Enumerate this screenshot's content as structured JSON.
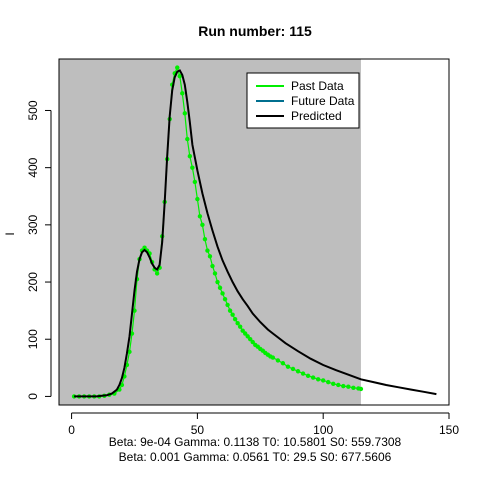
{
  "chart_data": {
    "type": "line",
    "title": "Run number:  115",
    "xlabel": "",
    "ylabel": "I",
    "xlim": [
      -5,
      150
    ],
    "ylim": [
      -15,
      590
    ],
    "xticks": [
      0,
      50,
      100,
      150
    ],
    "yticks": [
      0,
      100,
      200,
      300,
      400,
      500
    ],
    "grid": false,
    "shaded_region_x": [
      -5,
      115
    ],
    "legend": {
      "position": "top-right",
      "entries": [
        {
          "label": "Past Data",
          "color": "#00ee00"
        },
        {
          "label": "Future Data",
          "color": "#006f8f"
        },
        {
          "label": "Predicted",
          "color": "#000000"
        }
      ]
    },
    "footer_lines": [
      "Beta:  9e-04 Gamma:  0.1138 T0:  10.5801 S0:  559.7308",
      "Beta:  0.001 Gamma:  0.0561 T0:  29.5 S0:  677.5606"
    ],
    "series": [
      {
        "name": "Past Data",
        "style": "points+line",
        "color": "#00ee00",
        "x": [
          1,
          3,
          5,
          7,
          9,
          11,
          13,
          15,
          17,
          19,
          20,
          21,
          22,
          23,
          24,
          25,
          26,
          27,
          28,
          29,
          30,
          31,
          32,
          33,
          34,
          35,
          36,
          37,
          38,
          39,
          40,
          41,
          42,
          43,
          44,
          45,
          46,
          47,
          48,
          49,
          50,
          51,
          52,
          53,
          54,
          55,
          56,
          57,
          58,
          59,
          60,
          61,
          62,
          63,
          64,
          65,
          66,
          67,
          68,
          69,
          70,
          71,
          72,
          73,
          74,
          75,
          76,
          77,
          78,
          79,
          80,
          82,
          84,
          86,
          88,
          90,
          92,
          94,
          96,
          98,
          100,
          102,
          104,
          106,
          108,
          110,
          112,
          114,
          115
        ],
        "y": [
          0,
          0,
          0,
          0,
          0,
          0,
          1,
          3,
          5,
          12,
          20,
          35,
          55,
          78,
          110,
          150,
          205,
          240,
          255,
          260,
          255,
          250,
          235,
          222,
          215,
          225,
          280,
          340,
          415,
          485,
          545,
          565,
          575,
          560,
          530,
          495,
          450,
          420,
          400,
          375,
          345,
          315,
          300,
          275,
          255,
          245,
          228,
          215,
          200,
          190,
          180,
          170,
          160,
          150,
          143,
          135,
          128,
          122,
          115,
          110,
          105,
          100,
          95,
          90,
          87,
          83,
          80,
          76,
          73,
          70,
          68,
          63,
          58,
          52,
          48,
          44,
          40,
          36,
          33,
          30,
          28,
          25,
          22,
          20,
          18,
          17,
          15,
          14,
          13
        ]
      },
      {
        "name": "Predicted",
        "style": "line",
        "color": "#000000",
        "x": [
          1,
          5,
          10,
          12,
          14,
          16,
          18,
          19,
          20,
          21,
          22,
          23,
          24,
          25,
          26,
          27,
          28,
          29,
          30,
          31,
          32,
          33,
          34,
          35,
          36,
          37,
          38,
          39,
          40,
          41,
          42,
          43,
          44,
          45,
          46,
          47,
          48,
          50,
          52,
          54,
          56,
          58,
          60,
          62,
          64,
          66,
          68,
          70,
          72,
          75,
          78,
          80,
          85,
          90,
          95,
          100,
          105,
          110,
          115,
          120,
          125,
          130,
          135,
          140,
          145
        ],
        "y": [
          0,
          0,
          0,
          1,
          2,
          5,
          12,
          20,
          32,
          50,
          75,
          105,
          145,
          185,
          218,
          240,
          252,
          256,
          252,
          243,
          232,
          225,
          222,
          230,
          270,
          340,
          420,
          490,
          535,
          558,
          568,
          570,
          562,
          545,
          515,
          480,
          440,
          395,
          355,
          320,
          290,
          262,
          238,
          218,
          200,
          184,
          170,
          158,
          145,
          130,
          117,
          110,
          93,
          79,
          66,
          55,
          46,
          38,
          30,
          25,
          20,
          16,
          12,
          8,
          4
        ]
      }
    ]
  }
}
